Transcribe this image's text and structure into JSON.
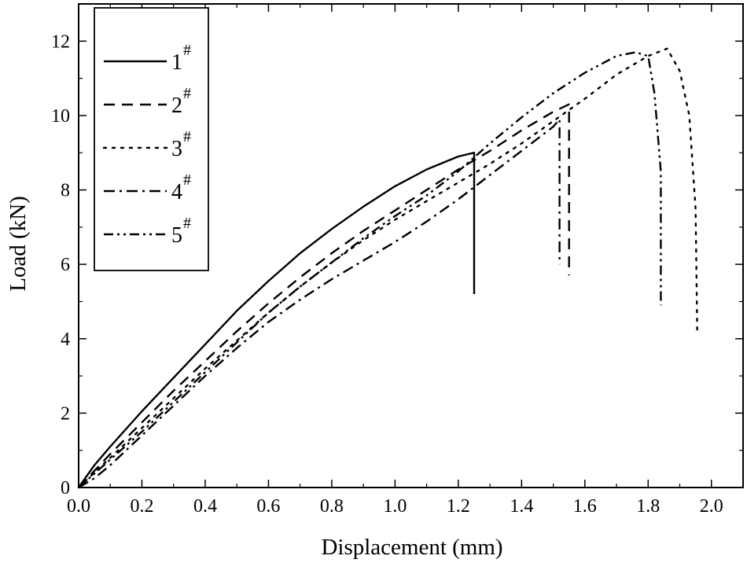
{
  "chart_data": {
    "type": "line",
    "title": "",
    "xlabel": "Displacement (mm)",
    "ylabel": "Load (kN)",
    "xlim": [
      0,
      2.1
    ],
    "ylim": [
      0,
      13
    ],
    "xticks": [
      0.0,
      0.2,
      0.4,
      0.6,
      0.8,
      1.0,
      1.2,
      1.4,
      1.6,
      1.8,
      2.0
    ],
    "xtick_labels": [
      "0.0",
      "0.2",
      "0.4",
      "0.6",
      "0.8",
      "1.0",
      "1.2",
      "1.4",
      "1.6",
      "1.8",
      "2.0"
    ],
    "yticks": [
      0,
      2,
      4,
      6,
      8,
      10,
      12
    ],
    "ytick_labels": [
      "0",
      "2",
      "4",
      "6",
      "8",
      "10",
      "12"
    ],
    "grid": false,
    "legend_position": "top-left",
    "series": [
      {
        "name": "1",
        "sup": "#",
        "style": "solid",
        "x": [
          0,
          0.05,
          0.1,
          0.2,
          0.3,
          0.4,
          0.5,
          0.6,
          0.7,
          0.8,
          0.9,
          1.0,
          1.1,
          1.2,
          1.25,
          1.25,
          1.25
        ],
        "y": [
          0,
          0.6,
          1.1,
          2.05,
          2.95,
          3.85,
          4.75,
          5.55,
          6.3,
          6.95,
          7.55,
          8.1,
          8.55,
          8.9,
          9.0,
          7.0,
          5.2
        ]
      },
      {
        "name": "2",
        "sup": "#",
        "style": "dashed",
        "x": [
          0,
          0.05,
          0.1,
          0.2,
          0.3,
          0.4,
          0.5,
          0.6,
          0.7,
          0.8,
          0.9,
          1.0,
          1.1,
          1.2,
          1.3,
          1.4,
          1.5,
          1.55,
          1.55,
          1.55
        ],
        "y": [
          0,
          0.45,
          0.9,
          1.75,
          2.6,
          3.4,
          4.2,
          4.95,
          5.65,
          6.3,
          6.9,
          7.45,
          8.0,
          8.55,
          9.05,
          9.6,
          10.1,
          10.3,
          8.0,
          5.7
        ]
      },
      {
        "name": "3",
        "sup": "#",
        "style": "dotted",
        "x": [
          0,
          0.1,
          0.2,
          0.3,
          0.4,
          0.5,
          0.6,
          0.7,
          0.8,
          0.9,
          1.0,
          1.1,
          1.2,
          1.3,
          1.4,
          1.5,
          1.6,
          1.7,
          1.8,
          1.86,
          1.9,
          1.93,
          1.95,
          1.955
        ],
        "y": [
          0,
          0.8,
          1.6,
          2.4,
          3.2,
          3.95,
          4.7,
          5.4,
          6.05,
          6.65,
          7.2,
          7.7,
          8.2,
          8.7,
          9.25,
          9.85,
          10.45,
          11.1,
          11.6,
          11.8,
          11.2,
          10.0,
          7.5,
          4.2
        ]
      },
      {
        "name": "4",
        "sup": "#",
        "style": "dashdot",
        "x": [
          0,
          0.05,
          0.1,
          0.2,
          0.3,
          0.4,
          0.5,
          0.6,
          0.7,
          0.8,
          0.9,
          1.0,
          1.1,
          1.2,
          1.3,
          1.4,
          1.5,
          1.52,
          1.52,
          1.52
        ],
        "y": [
          0,
          0.25,
          0.6,
          1.4,
          2.2,
          3.0,
          3.75,
          4.45,
          5.05,
          5.6,
          6.1,
          6.6,
          7.15,
          7.75,
          8.4,
          9.05,
          9.7,
          9.9,
          8.0,
          6.0
        ]
      },
      {
        "name": "5",
        "sup": "#",
        "style": "dashdotdot",
        "x": [
          0,
          0.1,
          0.2,
          0.3,
          0.4,
          0.5,
          0.6,
          0.7,
          0.8,
          0.9,
          1.0,
          1.1,
          1.2,
          1.3,
          1.4,
          1.5,
          1.6,
          1.7,
          1.76,
          1.8,
          1.82,
          1.84,
          1.84
        ],
        "y": [
          0,
          0.75,
          1.5,
          2.3,
          3.1,
          3.9,
          4.7,
          5.4,
          6.05,
          6.7,
          7.3,
          7.85,
          8.5,
          9.25,
          9.95,
          10.6,
          11.15,
          11.6,
          11.7,
          11.6,
          10.6,
          8.5,
          4.9
        ]
      }
    ]
  }
}
